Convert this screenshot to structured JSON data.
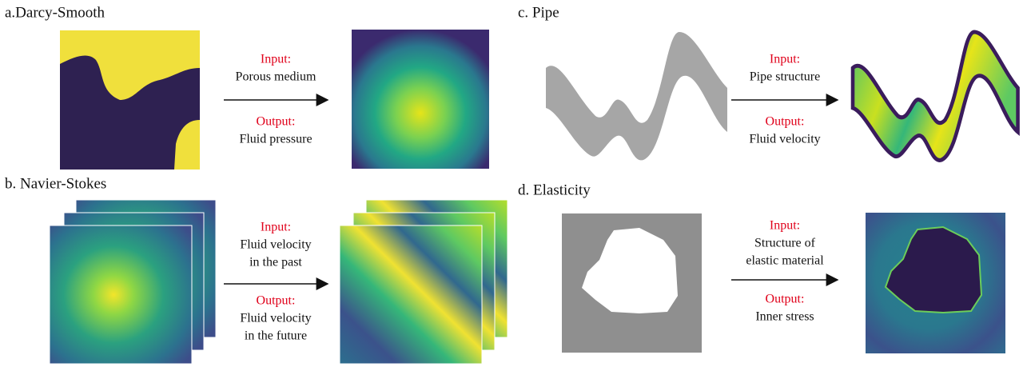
{
  "panels": [
    {
      "title": "a.Darcy-Smooth",
      "input_label": "Input:",
      "input": [
        "Porous medium"
      ],
      "output_label": "Output:",
      "output": [
        "Fluid pressure"
      ]
    },
    {
      "title": "b. Navier-Stokes",
      "input_label": "Input:",
      "input": [
        "Fluid velocity",
        "in the past"
      ],
      "output_label": "Output:",
      "output": [
        "Fluid velocity",
        "in the future"
      ]
    },
    {
      "title": "c. Pipe",
      "input_label": "Input:",
      "input": [
        "Pipe structure"
      ],
      "output_label": "Output:",
      "output": [
        "Fluid velocity"
      ]
    },
    {
      "title": "d. Elasticity",
      "input_label": "Input:",
      "input": [
        "Structure of",
        "elastic material"
      ],
      "output_label": "Output:",
      "output": [
        "Inner stress"
      ]
    }
  ]
}
